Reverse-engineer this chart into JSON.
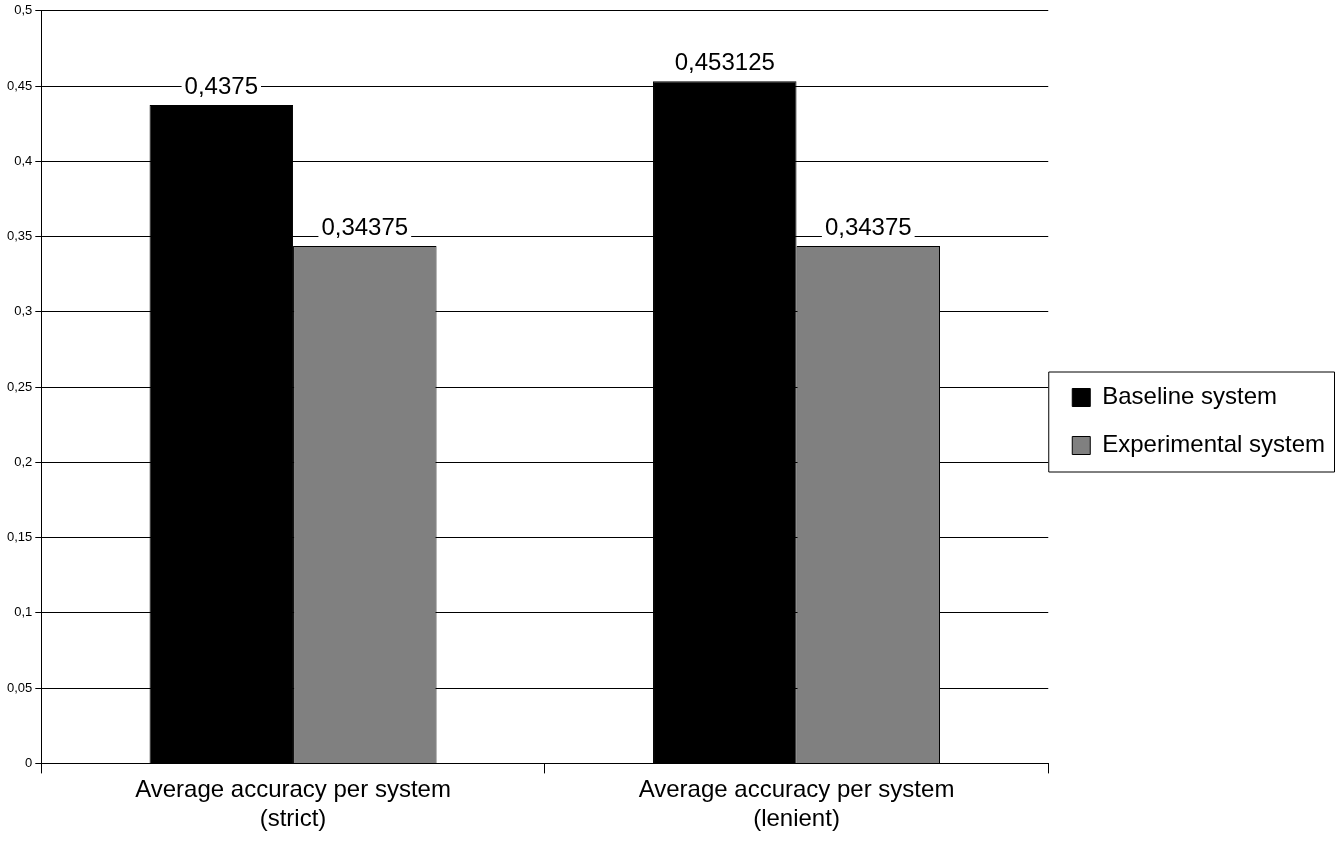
{
  "chart_data": {
    "type": "bar",
    "categories": [
      "Average accuracy per system (strict)",
      "Average accuracy per system (lenient)"
    ],
    "series": [
      {
        "name": "Baseline system",
        "color": "#000000",
        "values": [
          0.4375,
          0.453125
        ],
        "value_labels": [
          "0,4375",
          "0,453125"
        ]
      },
      {
        "name": "Experimental system",
        "color": "#808080",
        "values": [
          0.34375,
          0.34375
        ],
        "value_labels": [
          "0,34375",
          "0,34375"
        ]
      }
    ],
    "ylim": [
      0,
      0.5
    ],
    "yticks": [
      {
        "value": 0,
        "label": "0"
      },
      {
        "value": 0.05,
        "label": "0,05"
      },
      {
        "value": 0.1,
        "label": "0,1"
      },
      {
        "value": 0.15,
        "label": "0,15"
      },
      {
        "value": 0.2,
        "label": "0,2"
      },
      {
        "value": 0.25,
        "label": "0,25"
      },
      {
        "value": 0.3,
        "label": "0,3"
      },
      {
        "value": 0.35,
        "label": "0,35"
      },
      {
        "value": 0.4,
        "label": "0,4"
      },
      {
        "value": 0.45,
        "label": "0,45"
      },
      {
        "value": 0.5,
        "label": "0,5"
      }
    ],
    "grid": "y",
    "legend": "right"
  }
}
